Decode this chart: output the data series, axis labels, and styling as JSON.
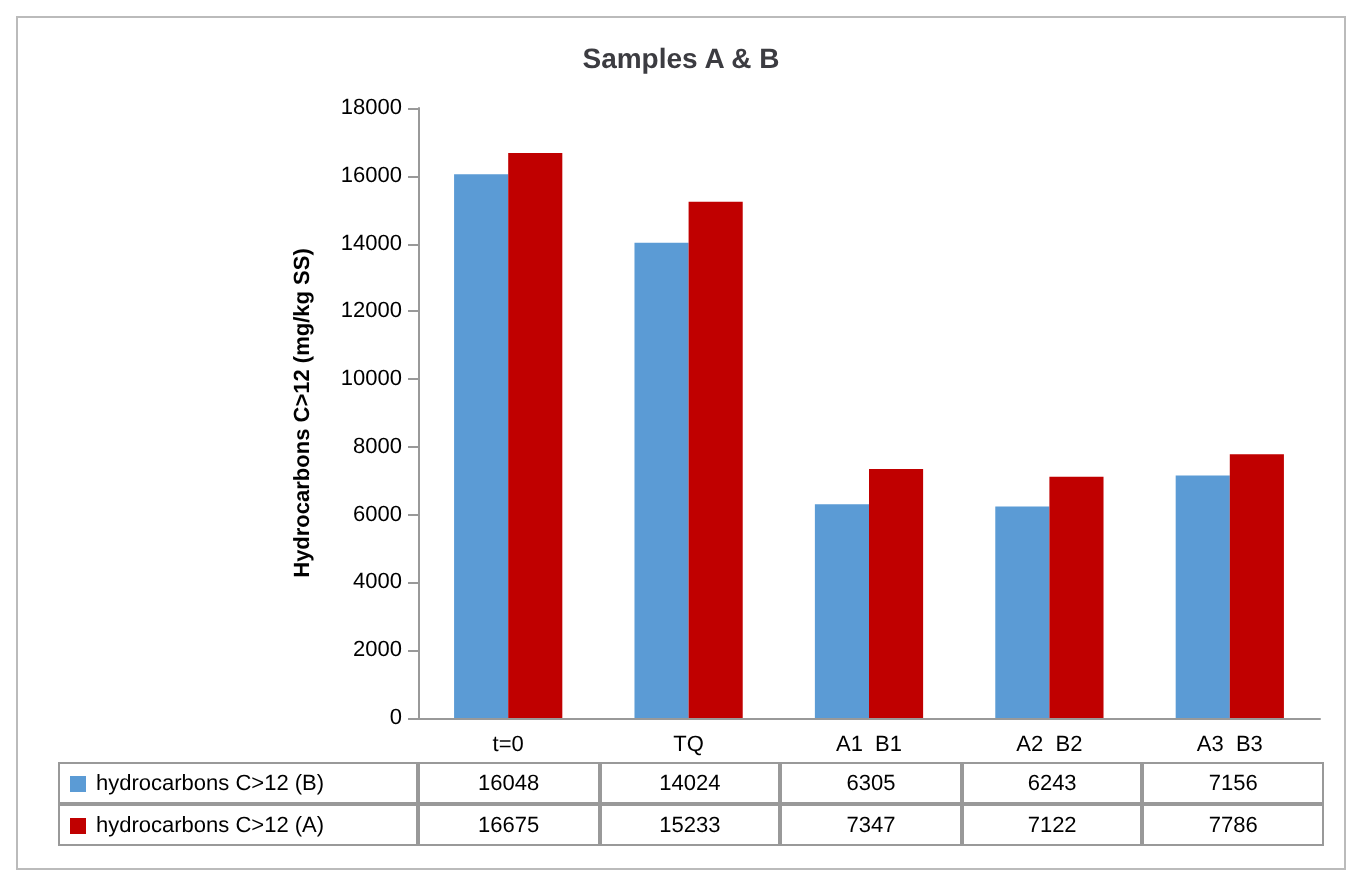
{
  "chart_data": {
    "type": "bar",
    "title": "Samples A & B",
    "ylabel": "Hydrocarbons C>12 (mg/kg SS)",
    "categories": [
      "t=0",
      "TQ",
      "A1  B1",
      "A2  B2",
      "A3  B3"
    ],
    "series": [
      {
        "name": "hydrocarbons C>12 (B)",
        "color": "#5b9bd5",
        "values": [
          16048,
          14024,
          6305,
          6243,
          7156
        ]
      },
      {
        "name": "hydrocarbons C>12 (A)",
        "color": "#c00000",
        "values": [
          16675,
          15233,
          7347,
          7122,
          7786
        ]
      }
    ],
    "ylim": [
      0,
      18000
    ],
    "yticks": [
      0,
      2000,
      4000,
      6000,
      8000,
      10000,
      12000,
      14000,
      16000,
      18000
    ],
    "grid": false,
    "legend": "bottom left",
    "data_labels": true
  }
}
